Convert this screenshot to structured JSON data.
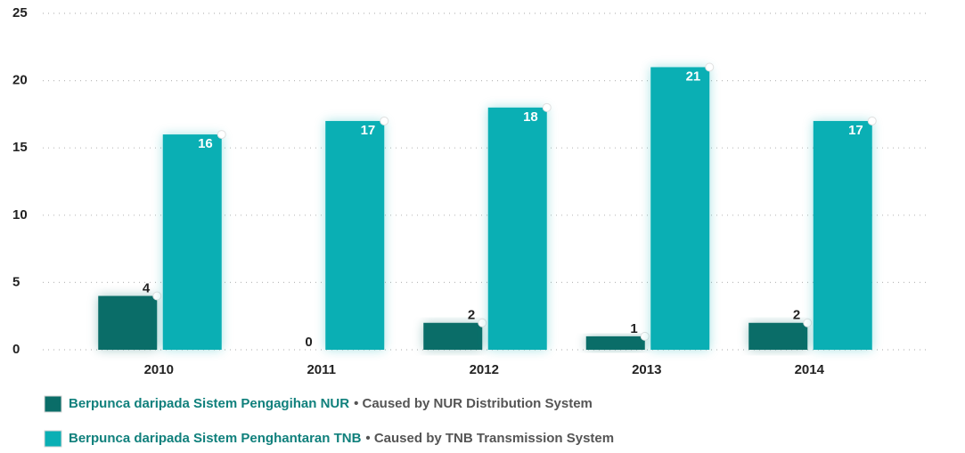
{
  "chart_data": {
    "type": "bar",
    "categories": [
      "2010",
      "2011",
      "2012",
      "2013",
      "2014"
    ],
    "series": [
      {
        "name": "Berpunca daripada Sistem Pengagihan NUR",
        "description": "• Caused by NUR Distribution System",
        "color": "#0a6d68",
        "values": [
          4,
          0,
          2,
          1,
          2
        ]
      },
      {
        "name": "Berpunca daripada Sistem Penghantaran TNB",
        "description": "• Caused by TNB Transmission System",
        "color": "#0aafb4",
        "values": [
          16,
          17,
          18,
          21,
          17
        ]
      }
    ],
    "ylim": [
      0,
      25
    ],
    "yticks": [
      0,
      5,
      10,
      15,
      20,
      25
    ],
    "grid": true
  }
}
